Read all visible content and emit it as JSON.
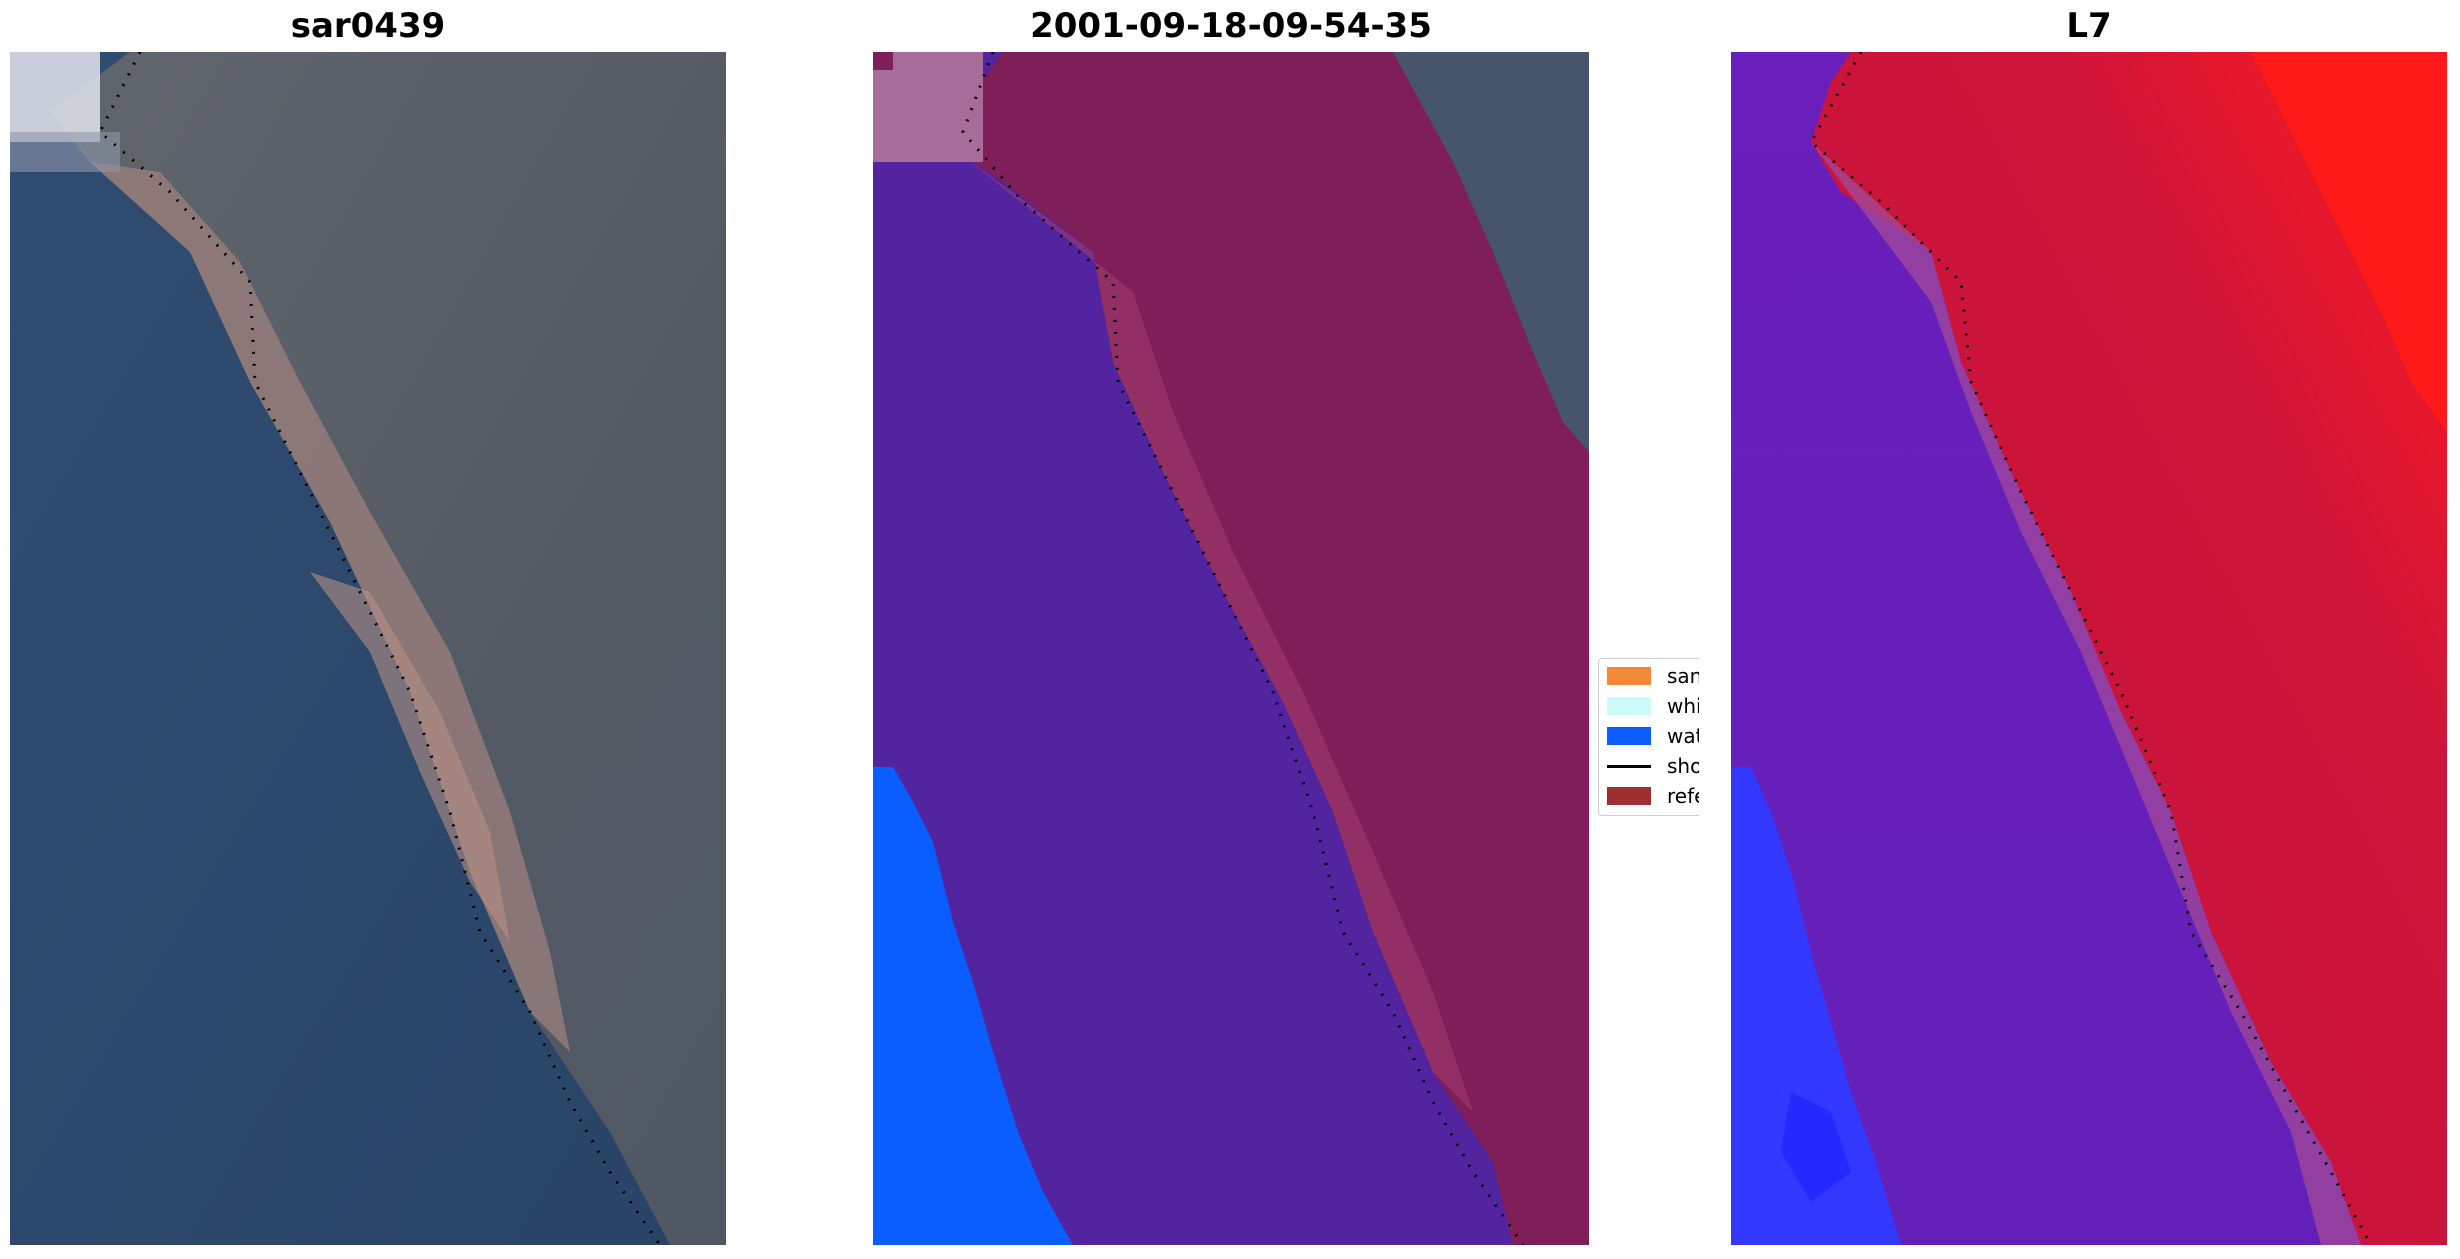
{
  "panels": [
    {
      "title": "sar0439",
      "kind": "rgb"
    },
    {
      "title": "2001-09-18-09-54-35",
      "kind": "classified"
    },
    {
      "title": "L7",
      "kind": "mndwi"
    }
  ],
  "legend": {
    "items": [
      {
        "label": "sand",
        "color": "#f28a38",
        "type": "patch"
      },
      {
        "label": "whitew",
        "color": "#cdfbfb",
        "type": "patch"
      },
      {
        "label": "water",
        "color": "#0a5eff",
        "type": "patch"
      },
      {
        "label": "shorel",
        "color": "#000000",
        "type": "line"
      },
      {
        "label": "referen",
        "color": "#9e2f2f",
        "type": "patch"
      }
    ]
  },
  "colors": {
    "rgb_sea": "#2c4a6e",
    "rgb_land": "#525a66",
    "rgb_beach": "#b09088",
    "class_water": "#5324a0",
    "class_land": "#7f1f5a",
    "class_land_gray": "#47556a",
    "class_water_blue": "#0a5eff",
    "mndwi_water": "#6a1ebc",
    "mndwi_land": "#c8123c",
    "mndwi_blue": "#3338ff",
    "mndwi_red": "#ff1a1a"
  }
}
